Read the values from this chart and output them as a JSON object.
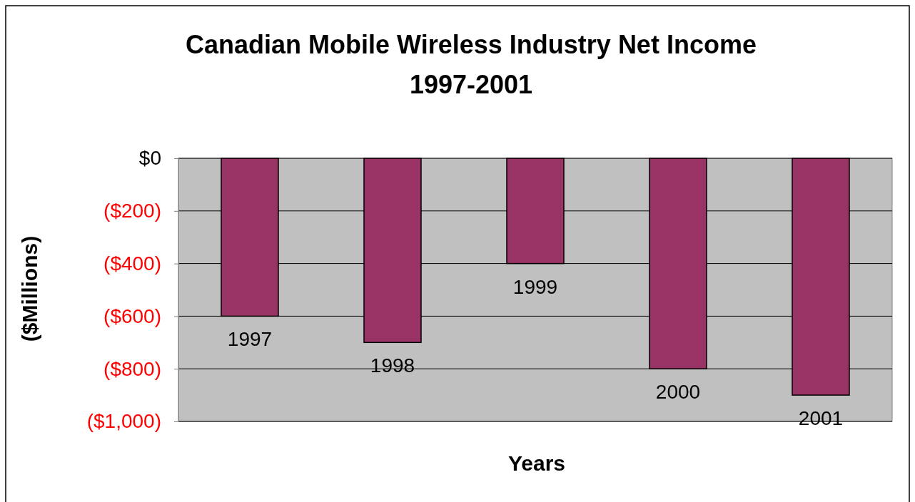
{
  "chart_data": {
    "type": "bar",
    "title": "Canadian Mobile Wireless Industry Net Income\n1997-2001",
    "xlabel": "Years",
    "ylabel": "($Millions)",
    "categories": [
      "1997",
      "1998",
      "1999",
      "2000",
      "2001"
    ],
    "values": [
      -600,
      -700,
      -400,
      -800,
      -900
    ],
    "color": "#993366",
    "ylim": [
      -1000,
      0
    ],
    "yticks": [
      {
        "value": -1000,
        "label": "($1,000)"
      },
      {
        "value": -800,
        "label": "($800)"
      },
      {
        "value": -600,
        "label": "($600)"
      },
      {
        "value": -400,
        "label": "($400)"
      },
      {
        "value": -200,
        "label": "($200)"
      },
      {
        "value": 0,
        "label": "$0"
      }
    ],
    "grid": "y"
  }
}
